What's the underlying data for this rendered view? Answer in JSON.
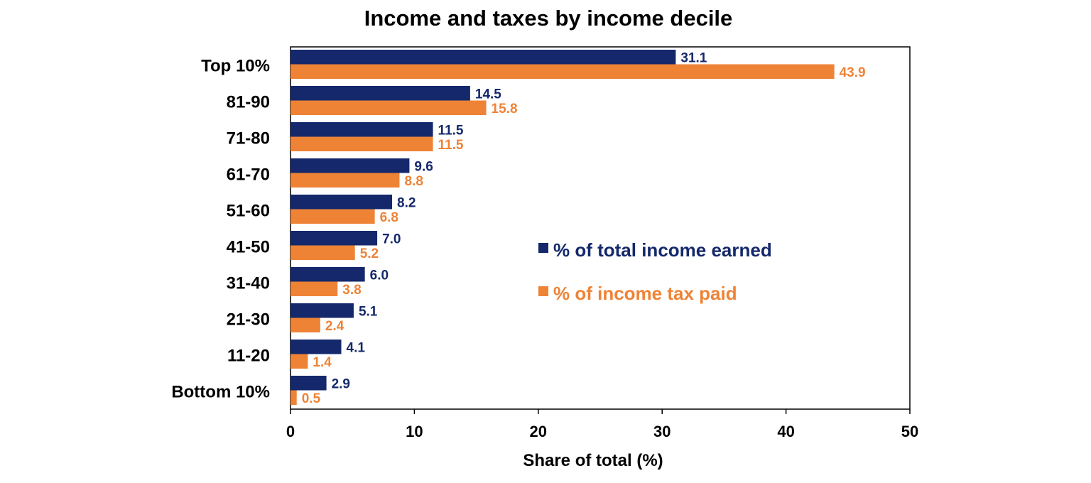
{
  "chart_data": {
    "type": "bar",
    "orientation": "horizontal",
    "title": "Income and taxes by income decile",
    "xlabel": "Share of total (%)",
    "ylabel": "",
    "xlim": [
      0,
      50
    ],
    "xticks": [
      0,
      10,
      20,
      30,
      40,
      50
    ],
    "grid": false,
    "legend_placement": "center-right",
    "categories": [
      "Top 10%",
      "81-90",
      "71-80",
      "61-70",
      "51-60",
      "41-50",
      "31-40",
      "21-30",
      "11-20",
      "Bottom 10%"
    ],
    "series": [
      {
        "name": "% of total income earned",
        "color": "#14286B",
        "values": [
          31.1,
          14.5,
          11.5,
          9.6,
          8.2,
          7.0,
          6.0,
          5.1,
          4.1,
          2.9
        ],
        "labels": [
          "31.1",
          "14.5",
          "11.5",
          "9.6",
          "8.2",
          "7.0",
          "6.0",
          "5.1",
          "4.1",
          "2.9"
        ]
      },
      {
        "name": "% of income tax paid",
        "color": "#EE8336",
        "values": [
          43.9,
          15.8,
          11.5,
          8.8,
          6.8,
          5.2,
          3.8,
          2.4,
          1.4,
          0.5
        ],
        "labels": [
          "43.9",
          "15.8",
          "11.5",
          "8.8",
          "6.8",
          "5.2",
          "3.8",
          "2.4",
          "1.4",
          "0.5"
        ]
      }
    ]
  }
}
